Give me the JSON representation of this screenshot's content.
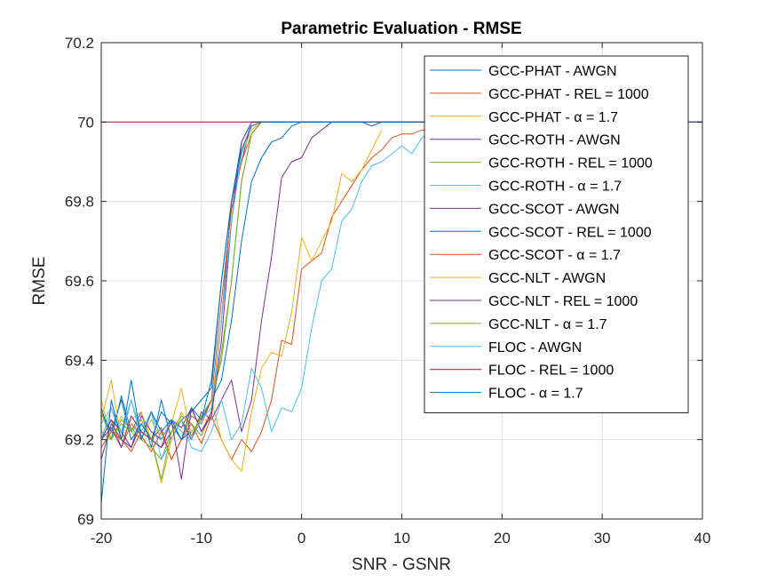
{
  "chart_data": {
    "type": "line",
    "title": "Parametric Evaluation - RMSE",
    "xlabel": "SNR - GSNR",
    "ylabel": "RMSE",
    "xlim": [
      -20,
      40
    ],
    "ylim": [
      69,
      70.2
    ],
    "xticks": [
      "-20",
      "-10",
      "0",
      "10",
      "20",
      "30",
      "40"
    ],
    "yticks": [
      "69",
      "69.2",
      "69.4",
      "69.6",
      "69.8",
      "70",
      "70.2"
    ],
    "grid": true,
    "legend_position": "top-right",
    "series": [
      {
        "name": "GCC-PHAT - AWGN",
        "color": "#0072BD",
        "x": [
          -20,
          -19,
          -18,
          -17,
          -16,
          -15,
          -14,
          -13,
          -12,
          -11,
          -10,
          -9,
          -8,
          -7,
          -6,
          -5,
          -4,
          -3,
          40
        ],
        "y": [
          69.28,
          69.2,
          69.31,
          69.22,
          69.27,
          69.18,
          69.3,
          69.2,
          69.25,
          69.27,
          69.3,
          69.33,
          69.6,
          69.8,
          69.95,
          70.0,
          70.0,
          70.0,
          70.0
        ]
      },
      {
        "name": "GCC-PHAT - REL = 1000",
        "color": "#D95319",
        "x": [
          -20,
          -19,
          -18,
          -17,
          -16,
          -15,
          -14,
          -13,
          -12,
          -11,
          -10,
          -9,
          -8,
          -7,
          -6,
          -5,
          -4,
          -3,
          -2,
          -1,
          0,
          1,
          2,
          3,
          4,
          5,
          6,
          7,
          8,
          9,
          10,
          11,
          12,
          13
        ],
        "y": [
          69.2,
          69.25,
          69.18,
          69.24,
          69.21,
          69.17,
          69.22,
          69.15,
          69.2,
          69.24,
          69.19,
          69.26,
          69.2,
          69.15,
          69.2,
          69.17,
          69.22,
          69.3,
          69.45,
          69.44,
          69.63,
          69.65,
          69.67,
          69.76,
          69.8,
          69.84,
          69.88,
          69.91,
          69.93,
          69.96,
          69.97,
          69.97,
          69.98,
          69.98
        ]
      },
      {
        "name": "GCC-PHAT - α = 1.7",
        "color": "#EDB120",
        "x": [
          -20,
          -19,
          -18,
          -17,
          -16,
          -15,
          -14,
          -13,
          -12,
          -11,
          -10,
          -9,
          -8,
          -7,
          -6,
          -5,
          -4,
          -3,
          -2,
          -1,
          0,
          1,
          2,
          3,
          4,
          5,
          6,
          7,
          8
        ],
        "y": [
          69.3,
          69.2,
          69.26,
          69.22,
          69.2,
          69.25,
          69.2,
          69.24,
          69.33,
          69.2,
          69.26,
          69.3,
          69.2,
          69.15,
          69.12,
          69.27,
          69.38,
          69.42,
          69.41,
          69.52,
          69.71,
          69.65,
          69.7,
          69.75,
          69.87,
          69.85,
          69.88,
          69.93,
          69.98
        ]
      },
      {
        "name": "GCC-ROTH - AWGN",
        "color": "#7E2F8E",
        "x": [
          -20,
          -19,
          -18,
          -17,
          -16,
          -15,
          -14,
          -13,
          -12,
          -11,
          -10,
          -9,
          -8,
          -7,
          -6,
          -5,
          -4,
          -3,
          -2,
          -1,
          0,
          1,
          2,
          3,
          4,
          5,
          6,
          7,
          8,
          40
        ],
        "y": [
          69.15,
          69.24,
          69.2,
          69.18,
          69.24,
          69.2,
          69.18,
          69.22,
          69.25,
          69.2,
          69.27,
          69.25,
          69.3,
          69.35,
          69.22,
          69.3,
          69.5,
          69.66,
          69.86,
          69.9,
          69.91,
          69.96,
          69.98,
          70.0,
          70.0,
          70.0,
          70.0,
          69.99,
          70.0,
          70.0
        ]
      },
      {
        "name": "GCC-ROTH - REL = 1000",
        "color": "#77AC30",
        "x": [
          -20,
          -19,
          -18,
          -17,
          -16,
          -15,
          -14,
          -13,
          -12,
          -11,
          -10,
          -9,
          -8,
          -7,
          -6,
          -5,
          -4,
          -3
        ],
        "y": [
          69.22,
          69.2,
          69.25,
          69.23,
          69.2,
          69.18,
          69.15,
          69.22,
          69.26,
          69.24,
          69.21,
          69.27,
          69.42,
          69.6,
          69.85,
          69.97,
          70.0,
          70.0
        ]
      },
      {
        "name": "GCC-ROTH - α = 1.7",
        "color": "#4DBEEE",
        "x": [
          -20,
          -19,
          -18,
          -17,
          -16,
          -15,
          -14,
          -13,
          -12,
          -11,
          -10,
          -9,
          -8,
          -7,
          -6,
          -5,
          -4,
          -3,
          -2,
          -1,
          0,
          1,
          2,
          3,
          4,
          5,
          6,
          7,
          8,
          9,
          10,
          11,
          12,
          13
        ],
        "y": [
          69.24,
          69.28,
          69.2,
          69.3,
          69.22,
          69.27,
          69.15,
          69.2,
          69.25,
          69.18,
          69.17,
          69.22,
          69.3,
          69.2,
          69.24,
          69.38,
          69.33,
          69.22,
          69.28,
          69.27,
          69.33,
          69.48,
          69.6,
          69.63,
          69.75,
          69.78,
          69.85,
          69.89,
          69.9,
          69.92,
          69.94,
          69.92,
          69.96,
          69.98
        ]
      },
      {
        "name": "GCC-SCOT - AWGN",
        "color": "#7E2F8E",
        "x": [
          -20,
          -19,
          -18,
          -17,
          -16,
          -15,
          -14,
          -13,
          -12,
          -11,
          -10,
          -9,
          -8,
          -7,
          -6,
          -5,
          -4,
          -3,
          -2
        ],
        "y": [
          69.2,
          69.25,
          69.22,
          69.18,
          69.26,
          69.22,
          69.2,
          69.25,
          69.23,
          69.28,
          69.22,
          69.27,
          69.5,
          69.8,
          69.9,
          70.0,
          70.0,
          70.0,
          70.0
        ]
      },
      {
        "name": "GCC-SCOT - REL = 1000",
        "color": "#0072BD",
        "x": [
          -20,
          -19,
          -18,
          -17,
          -16,
          -15,
          -14,
          -13,
          -12,
          -11,
          -10,
          -9,
          -8,
          -7,
          -6,
          -5,
          -4,
          -3,
          -2,
          -1,
          0,
          1,
          2
        ],
        "y": [
          69.27,
          69.22,
          69.3,
          69.2,
          69.24,
          69.2,
          69.27,
          69.24,
          69.2,
          69.22,
          69.25,
          69.3,
          69.35,
          69.5,
          69.7,
          69.85,
          69.91,
          69.95,
          69.96,
          69.99,
          70.0,
          70.0,
          70.0
        ]
      },
      {
        "name": "GCC-SCOT - α = 1.7",
        "color": "#D95319",
        "x": [
          -20,
          -19,
          -18,
          -17,
          -16,
          -15,
          -14,
          -13,
          -12,
          -11,
          -10,
          -9,
          -8,
          -7,
          -6,
          -5,
          -4,
          -3
        ],
        "y": [
          69.18,
          69.22,
          69.2,
          69.17,
          69.22,
          69.2,
          69.23,
          69.15,
          69.2,
          69.26,
          69.24,
          69.3,
          69.55,
          69.78,
          69.9,
          69.97,
          70.0,
          70.0
        ]
      },
      {
        "name": "GCC-NLT - AWGN",
        "color": "#EDB120",
        "x": [
          -20,
          -19,
          -18,
          -17,
          -16,
          -15,
          -14,
          -13,
          -12,
          -11,
          -10,
          -9,
          -8,
          -7,
          -6,
          -5,
          -4,
          -3
        ],
        "y": [
          69.25,
          69.35,
          69.2,
          69.25,
          69.27,
          69.2,
          69.09,
          69.2,
          69.27,
          69.22,
          69.25,
          69.25,
          69.5,
          69.75,
          69.92,
          69.98,
          70.0,
          70.0
        ]
      },
      {
        "name": "GCC-NLT - REL = 1000",
        "color": "#7E2F8E",
        "x": [
          -20,
          -19,
          -18,
          -17,
          -16,
          -15,
          -14,
          -13,
          -12,
          -11,
          -10,
          -9,
          -8,
          -7,
          -6,
          -5,
          -4,
          -3
        ],
        "y": [
          69.2,
          69.23,
          69.18,
          69.26,
          69.22,
          69.2,
          69.18,
          69.25,
          69.1,
          69.28,
          69.22,
          69.26,
          69.45,
          69.75,
          69.95,
          70.0,
          70.0,
          70.0
        ]
      },
      {
        "name": "GCC-NLT - α = 1.7",
        "color": "#77AC30",
        "x": [
          -20,
          -19,
          -18,
          -17,
          -16,
          -15,
          -14,
          -13,
          -12,
          -11,
          -10,
          -9,
          -8,
          -7,
          -6,
          -5,
          -4,
          -3
        ],
        "y": [
          69.27,
          69.2,
          69.24,
          69.22,
          69.25,
          69.2,
          69.1,
          69.22,
          69.25,
          69.21,
          69.26,
          69.3,
          69.4,
          69.6,
          69.85,
          69.97,
          70.0,
          70.0
        ]
      },
      {
        "name": "FLOC - AWGN",
        "color": "#4DBEEE",
        "x": [
          -20,
          -19,
          -18,
          -17,
          -16,
          -15,
          -14,
          -13,
          -12,
          -11,
          -10,
          -9,
          -8,
          -7,
          -6,
          -5,
          -4,
          -3
        ],
        "y": [
          69.2,
          69.28,
          69.22,
          69.3,
          69.2,
          69.27,
          69.2,
          69.25,
          69.22,
          69.2,
          69.25,
          69.28,
          69.5,
          69.75,
          69.92,
          70.0,
          70.0,
          70.0
        ]
      },
      {
        "name": "FLOC - REL = 1000",
        "color": "#A2142F",
        "x": [
          -20,
          40
        ],
        "y": [
          70.0,
          70.0
        ]
      },
      {
        "name": "FLOC - α = 1.7",
        "color": "#0072BD",
        "x": [
          -20,
          -19,
          -18,
          -17,
          -16,
          -15,
          -14,
          -13,
          -12,
          -11,
          -10,
          -9,
          -8,
          -7,
          -6,
          -5,
          -4,
          -3,
          40
        ],
        "y": [
          69.04,
          69.3,
          69.2,
          69.35,
          69.2,
          69.27,
          69.22,
          69.25,
          69.2,
          69.28,
          69.25,
          69.35,
          69.6,
          69.8,
          69.93,
          69.99,
          70.0,
          70.0,
          70.0
        ]
      }
    ]
  }
}
